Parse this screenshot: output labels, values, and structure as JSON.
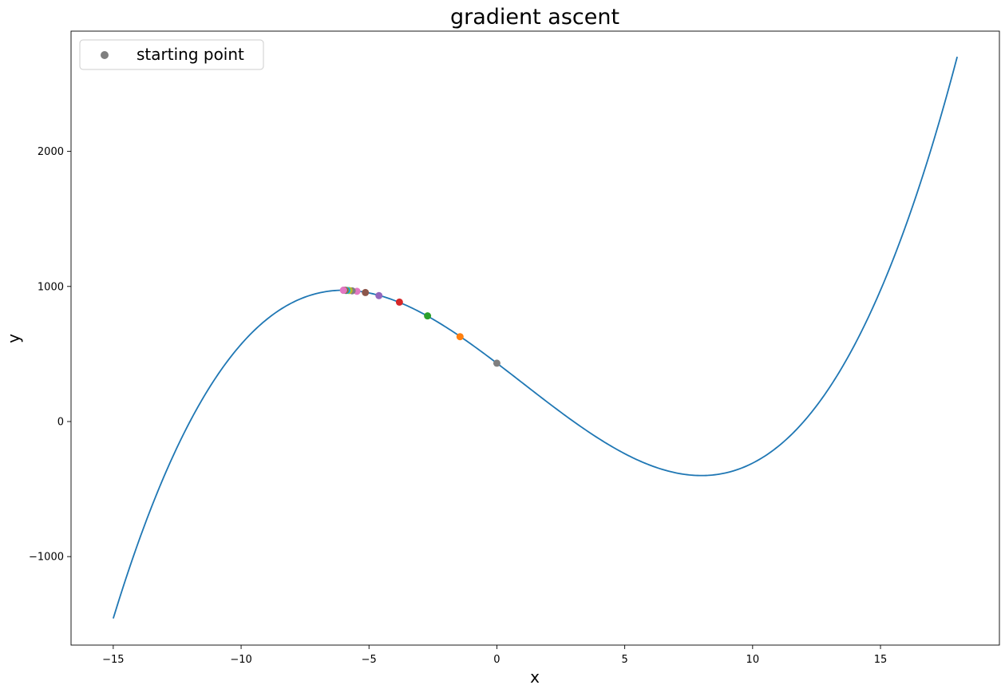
{
  "chart_data": {
    "type": "line",
    "title": "gradient ascent",
    "xlabel": "x",
    "ylabel": "y",
    "xlim": [
      -16.65,
      19.65
    ],
    "ylim": [
      -1655,
      2890
    ],
    "xticks": [
      -15,
      -10,
      -5,
      0,
      5,
      10,
      15
    ],
    "yticks": [
      -1000,
      0,
      1000,
      2000
    ],
    "xtick_labels": [
      "−15",
      "−10",
      "−5",
      "0",
      "5",
      "10",
      "15"
    ],
    "ytick_labels": [
      "−1000",
      "0",
      "1000",
      "2000"
    ],
    "grid": false,
    "legend_position": "top-left",
    "curve": {
      "color": "#1f77b4",
      "x_range": [
        -15,
        18
      ],
      "function": "y = x^3 - 3x^2 - 144x + 432",
      "coefficients": [
        1,
        -3,
        -144,
        432
      ]
    },
    "legend": [
      {
        "label": "starting point",
        "color": "#7f7f7f"
      }
    ],
    "points": [
      {
        "x": 0.0,
        "y": 432,
        "color": "#7f7f7f"
      },
      {
        "x": -1.44,
        "y": 628,
        "color": "#ff7f0e"
      },
      {
        "x": -2.71,
        "y": 782,
        "color": "#2ca02c"
      },
      {
        "x": -3.81,
        "y": 884,
        "color": "#d62728"
      },
      {
        "x": -4.61,
        "y": 932,
        "color": "#9467bd"
      },
      {
        "x": -5.14,
        "y": 955,
        "color": "#8c564b"
      },
      {
        "x": -5.47,
        "y": 964,
        "color": "#e377c2"
      },
      {
        "x": -5.66,
        "y": 968,
        "color": "#7f7f7f"
      },
      {
        "x": -5.78,
        "y": 970,
        "color": "#bcbd22"
      },
      {
        "x": -5.86,
        "y": 971,
        "color": "#17becf"
      },
      {
        "x": -5.91,
        "y": 971,
        "color": "#1f77b4"
      },
      {
        "x": -5.94,
        "y": 972,
        "color": "#ff7f0e"
      },
      {
        "x": -5.96,
        "y": 972,
        "color": "#2ca02c"
      },
      {
        "x": -5.98,
        "y": 972,
        "color": "#d62728"
      },
      {
        "x": -5.99,
        "y": 972,
        "color": "#9467bd"
      },
      {
        "x": -6.0,
        "y": 972,
        "color": "#e377c2"
      }
    ]
  }
}
